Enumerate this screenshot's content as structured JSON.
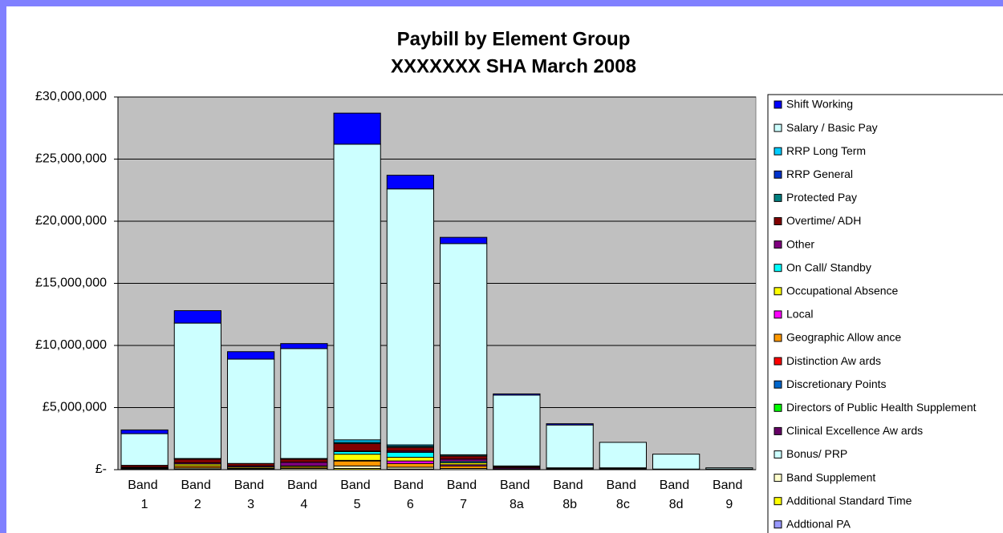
{
  "chart_data": {
    "type": "stacked_bar",
    "title": "Paybill by Element Group",
    "subtitle": "XXXXXXX SHA March 2008",
    "categories": [
      "Band 1",
      "Band 2",
      "Band 3",
      "Band 4",
      "Band 5",
      "Band 6",
      "Band 7",
      "Band 8a",
      "Band 8b",
      "Band 8c",
      "Band 8d",
      "Band 9"
    ],
    "ylim": [
      0,
      30000000
    ],
    "yticks": [
      {
        "value": 0,
        "label": "£-"
      },
      {
        "value": 5000000,
        "label": "£5,000,000"
      },
      {
        "value": 10000000,
        "label": "£10,000,000"
      },
      {
        "value": 15000000,
        "label": "£15,000,000"
      },
      {
        "value": 20000000,
        "label": "£20,000,000"
      },
      {
        "value": 25000000,
        "label": "£25,000,000"
      },
      {
        "value": 30000000,
        "label": "£30,000,000"
      }
    ],
    "grid": true,
    "legend": "right",
    "series": [
      {
        "name": "Shift Working",
        "color": "#0000ff",
        "values": [
          300000,
          1000000,
          600000,
          400000,
          2500000,
          1100000,
          500000,
          100000,
          100000,
          0,
          0,
          0
        ]
      },
      {
        "name": "Salary / Basic Pay",
        "color": "#ccffff",
        "values": [
          2550000,
          10900000,
          8400000,
          8850000,
          23800000,
          20600000,
          17000000,
          5700000,
          3450000,
          2050000,
          1200000,
          100000
        ]
      },
      {
        "name": "RRP Long Term",
        "color": "#00ccff",
        "values": [
          0,
          0,
          0,
          0,
          200000,
          100000,
          0,
          0,
          0,
          0,
          0,
          0
        ]
      },
      {
        "name": "RRP General",
        "color": "#0033cc",
        "values": [
          0,
          0,
          0,
          0,
          0,
          0,
          0,
          0,
          0,
          0,
          0,
          0
        ]
      },
      {
        "name": "Protected Pay",
        "color": "#008080",
        "values": [
          0,
          50000,
          0,
          50000,
          100000,
          100000,
          100000,
          50000,
          0,
          0,
          0,
          0
        ]
      },
      {
        "name": "Overtime/ ADH",
        "color": "#800000",
        "values": [
          150000,
          300000,
          200000,
          250000,
          600000,
          300000,
          250000,
          100000,
          50000,
          50000,
          0,
          0
        ]
      },
      {
        "name": "Other",
        "color": "#800080",
        "values": [
          50000,
          100000,
          100000,
          300000,
          50000,
          100000,
          200000,
          100000,
          50000,
          50000,
          0,
          50000
        ]
      },
      {
        "name": "On Call/ Standby",
        "color": "#00ffff",
        "values": [
          0,
          0,
          0,
          0,
          200000,
          400000,
          100000,
          0,
          0,
          0,
          0,
          0
        ]
      },
      {
        "name": "Occupational Absence",
        "color": "#ffff00",
        "values": [
          50000,
          150000,
          100000,
          100000,
          500000,
          300000,
          150000,
          0,
          0,
          0,
          0,
          0
        ]
      },
      {
        "name": "Local",
        "color": "#ff00ff",
        "values": [
          0,
          0,
          0,
          0,
          50000,
          200000,
          100000,
          0,
          0,
          0,
          0,
          0
        ]
      },
      {
        "name": "Geographic Allow ance",
        "color": "#ff9900",
        "values": [
          50000,
          150000,
          50000,
          100000,
          400000,
          300000,
          200000,
          50000,
          50000,
          50000,
          50000,
          0
        ]
      },
      {
        "name": "Distinction Aw ards",
        "color": "#ff0000",
        "values": [
          0,
          0,
          0,
          0,
          0,
          0,
          0,
          0,
          0,
          0,
          0,
          0
        ]
      },
      {
        "name": "Discretionary Points",
        "color": "#0066cc",
        "values": [
          0,
          0,
          0,
          0,
          0,
          0,
          0,
          0,
          0,
          0,
          0,
          0
        ]
      },
      {
        "name": "Directors of Public Health Supplement",
        "color": "#00ff00",
        "values": [
          0,
          0,
          0,
          0,
          0,
          0,
          0,
          0,
          0,
          0,
          0,
          0
        ]
      },
      {
        "name": "Clinical Excellence Aw ards",
        "color": "#660066",
        "values": [
          0,
          0,
          0,
          0,
          0,
          0,
          0,
          0,
          0,
          0,
          0,
          0
        ]
      },
      {
        "name": "Bonus/ PRP",
        "color": "#ccffff",
        "values": [
          0,
          0,
          0,
          0,
          0,
          0,
          0,
          0,
          0,
          0,
          0,
          0
        ]
      },
      {
        "name": "Band Supplement",
        "color": "#ffffcc",
        "values": [
          50000,
          100000,
          50000,
          100000,
          200000,
          150000,
          100000,
          0,
          0,
          0,
          0,
          0
        ]
      },
      {
        "name": "Additional Standard Time",
        "color": "#ffff00",
        "values": [
          0,
          50000,
          0,
          0,
          100000,
          50000,
          0,
          0,
          0,
          0,
          0,
          0
        ]
      },
      {
        "name": "Addtional PA",
        "color": "#9999ff",
        "values": [
          0,
          0,
          0,
          0,
          0,
          0,
          0,
          0,
          0,
          0,
          0,
          0
        ]
      }
    ]
  }
}
